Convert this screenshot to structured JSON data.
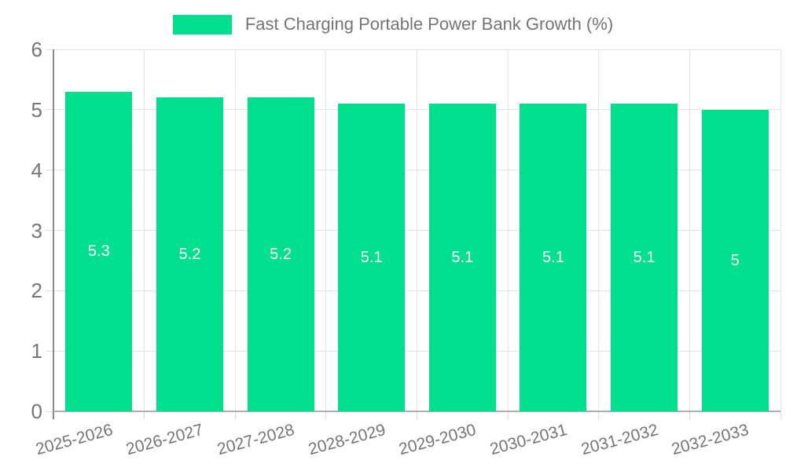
{
  "legend": {
    "label": "Fast Charging Portable Power Bank Growth (%)"
  },
  "chart_data": {
    "type": "bar",
    "title": "Fast Charging Portable Power Bank Growth (%)",
    "categories": [
      "2025-2026",
      "2026-2027",
      "2027-2028",
      "2028-2029",
      "2029-2030",
      "2030-2031",
      "2031-2032",
      "2032-2033"
    ],
    "values": [
      5.3,
      5.2,
      5.2,
      5.1,
      5.1,
      5.1,
      5.1,
      5
    ],
    "value_labels": [
      "5.3",
      "5.2",
      "5.2",
      "5.1",
      "5.1",
      "5.1",
      "5.1",
      "5"
    ],
    "xlabel": "",
    "ylabel": "",
    "ylim": [
      0,
      6
    ],
    "y_ticks": [
      0,
      1,
      2,
      3,
      4,
      5,
      6
    ],
    "grid": true,
    "legend_position": "top",
    "colors": {
      "bar": "#00DF8E",
      "bar_value_text": "#ffffff",
      "tick_text": "#757575",
      "legend_text": "#757575",
      "gridline": "#e3e3e3",
      "y_axis_line": "#8c8c8c",
      "x_axis_line": "#aeaeae"
    }
  }
}
